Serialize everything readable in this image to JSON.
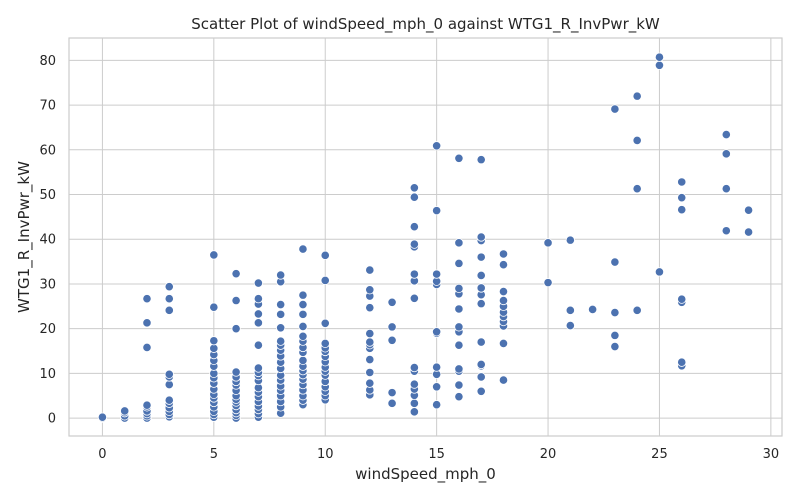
{
  "chart_data": {
    "type": "scatter",
    "title": "Scatter Plot of windSpeed_mph_0 against WTG1_R_InvPwr_kW",
    "xlabel": "windSpeed_mph_0",
    "ylabel": "WTG1_R_InvPwr_kW",
    "xlim": [
      -1.5,
      30.5
    ],
    "ylim": [
      -4,
      85
    ],
    "xticks": [
      0,
      5,
      10,
      15,
      20,
      25,
      30
    ],
    "yticks": [
      0,
      10,
      20,
      30,
      40,
      50,
      60,
      70,
      80
    ],
    "grid": true,
    "marker_color": "#4c72b0",
    "marker_edge_color": "#ffffff",
    "points": [
      [
        0,
        0
      ],
      [
        0,
        0.2
      ],
      [
        1,
        0
      ],
      [
        1,
        0.5
      ],
      [
        1,
        1.2
      ],
      [
        1,
        1.6
      ],
      [
        2,
        0
      ],
      [
        2,
        0.5
      ],
      [
        2,
        1
      ],
      [
        2,
        1.6
      ],
      [
        2,
        2.5
      ],
      [
        2,
        2.9
      ],
      [
        2,
        15.8
      ],
      [
        2,
        21.3
      ],
      [
        2,
        26.7
      ],
      [
        3,
        0.3
      ],
      [
        3,
        0.8
      ],
      [
        3,
        1.5
      ],
      [
        3,
        2.3
      ],
      [
        3,
        3.3
      ],
      [
        3,
        4
      ],
      [
        3,
        7.5
      ],
      [
        3,
        9.2
      ],
      [
        3,
        9.8
      ],
      [
        3,
        24.1
      ],
      [
        3,
        26.7
      ],
      [
        3,
        29.4
      ],
      [
        5,
        0.2
      ],
      [
        5,
        0.8
      ],
      [
        5,
        1.5
      ],
      [
        5,
        2.5
      ],
      [
        5,
        3.5
      ],
      [
        5,
        4.5
      ],
      [
        5,
        5.3
      ],
      [
        5,
        6.5
      ],
      [
        5,
        7.8
      ],
      [
        5,
        9
      ],
      [
        5,
        10
      ],
      [
        5,
        11.6
      ],
      [
        5,
        12.9
      ],
      [
        5,
        14.2
      ],
      [
        5,
        15.6
      ],
      [
        5,
        17.3
      ],
      [
        5,
        24.8
      ],
      [
        5,
        36.5
      ],
      [
        6,
        0
      ],
      [
        6,
        0.6
      ],
      [
        6,
        1.2
      ],
      [
        6,
        1.9
      ],
      [
        6,
        2.8
      ],
      [
        6,
        3.6
      ],
      [
        6,
        4.2
      ],
      [
        6,
        5
      ],
      [
        6,
        6.2
      ],
      [
        6,
        7.4
      ],
      [
        6,
        8.2
      ],
      [
        6,
        9.2
      ],
      [
        6,
        10.3
      ],
      [
        6,
        20
      ],
      [
        6,
        26.3
      ],
      [
        6,
        32.3
      ],
      [
        7,
        0.2
      ],
      [
        7,
        1
      ],
      [
        7,
        1.9
      ],
      [
        7,
        2.7
      ],
      [
        7,
        3.7
      ],
      [
        7,
        4.8
      ],
      [
        7,
        5.8
      ],
      [
        7,
        6.8
      ],
      [
        7,
        8.4
      ],
      [
        7,
        9.5
      ],
      [
        7,
        10.2
      ],
      [
        7,
        11.2
      ],
      [
        7,
        16.3
      ],
      [
        7,
        21.3
      ],
      [
        7,
        23.3
      ],
      [
        7,
        25.5
      ],
      [
        7,
        26.7
      ],
      [
        7,
        30.2
      ],
      [
        8,
        1.1
      ],
      [
        8,
        2.5
      ],
      [
        8,
        3.7
      ],
      [
        8,
        5
      ],
      [
        8,
        6.2
      ],
      [
        8,
        7.2
      ],
      [
        8,
        8.5
      ],
      [
        8,
        9.6
      ],
      [
        8,
        11.1
      ],
      [
        8,
        12.5
      ],
      [
        8,
        13.9
      ],
      [
        8,
        15.2
      ],
      [
        8,
        16.3
      ],
      [
        8,
        17.2
      ],
      [
        8,
        20.2
      ],
      [
        8,
        23.2
      ],
      [
        8,
        25.4
      ],
      [
        8,
        30.5
      ],
      [
        8,
        32
      ],
      [
        9,
        3
      ],
      [
        9,
        4
      ],
      [
        9,
        5
      ],
      [
        9,
        6.3
      ],
      [
        9,
        7.5
      ],
      [
        9,
        8.7
      ],
      [
        9,
        9.7
      ],
      [
        9,
        10.6
      ],
      [
        9,
        11.6
      ],
      [
        9,
        12.9
      ],
      [
        9,
        14.7
      ],
      [
        9,
        15.8
      ],
      [
        9,
        17.2
      ],
      [
        9,
        18.3
      ],
      [
        9,
        20.5
      ],
      [
        9,
        23.2
      ],
      [
        9,
        25.4
      ],
      [
        9,
        27.5
      ],
      [
        9,
        37.8
      ],
      [
        10,
        4.1
      ],
      [
        10,
        5
      ],
      [
        10,
        6
      ],
      [
        10,
        7
      ],
      [
        10,
        8.2
      ],
      [
        10,
        9.6
      ],
      [
        10,
        10.5
      ],
      [
        10,
        11.4
      ],
      [
        10,
        12.6
      ],
      [
        10,
        13.8
      ],
      [
        10,
        14.9
      ],
      [
        10,
        15.7
      ],
      [
        10,
        16.7
      ],
      [
        10,
        21.2
      ],
      [
        10,
        30.8
      ],
      [
        10,
        36.4
      ],
      [
        12,
        5.2
      ],
      [
        12,
        6.3
      ],
      [
        12,
        7.8
      ],
      [
        12,
        10.2
      ],
      [
        12,
        13.1
      ],
      [
        12,
        15.6
      ],
      [
        12,
        16.4
      ],
      [
        12,
        17
      ],
      [
        12,
        18.9
      ],
      [
        12,
        24.7
      ],
      [
        12,
        27.3
      ],
      [
        12,
        28.7
      ],
      [
        12,
        33.1
      ],
      [
        13,
        3.3
      ],
      [
        13,
        5.7
      ],
      [
        13,
        17.4
      ],
      [
        13,
        20.4
      ],
      [
        13,
        25.9
      ],
      [
        14,
        1.4
      ],
      [
        14,
        3.3
      ],
      [
        14,
        5.1
      ],
      [
        14,
        6.5
      ],
      [
        14,
        7.6
      ],
      [
        14,
        10.5
      ],
      [
        14,
        11.3
      ],
      [
        14,
        26.8
      ],
      [
        14,
        30.7
      ],
      [
        14,
        32.2
      ],
      [
        14,
        38.3
      ],
      [
        14,
        38.9
      ],
      [
        14,
        42.8
      ],
      [
        14,
        49.4
      ],
      [
        14,
        51.5
      ],
      [
        15,
        3
      ],
      [
        15,
        7
      ],
      [
        15,
        9.8
      ],
      [
        15,
        11.4
      ],
      [
        15,
        19
      ],
      [
        15,
        19.3
      ],
      [
        15,
        29.9
      ],
      [
        15,
        30.6
      ],
      [
        15,
        32.2
      ],
      [
        15,
        46.4
      ],
      [
        15,
        60.9
      ],
      [
        16,
        4.8
      ],
      [
        16,
        7.4
      ],
      [
        16,
        10.5
      ],
      [
        16,
        11
      ],
      [
        16,
        16.3
      ],
      [
        16,
        19.3
      ],
      [
        16,
        20.4
      ],
      [
        16,
        24.4
      ],
      [
        16,
        27.8
      ],
      [
        16,
        29
      ],
      [
        16,
        34.6
      ],
      [
        16,
        39.2
      ],
      [
        16,
        58.1
      ],
      [
        17,
        6
      ],
      [
        17,
        9.2
      ],
      [
        17,
        11.7
      ],
      [
        17,
        12
      ],
      [
        17,
        17
      ],
      [
        17,
        25.6
      ],
      [
        17,
        27.6
      ],
      [
        17,
        29.1
      ],
      [
        17,
        31.9
      ],
      [
        17,
        36
      ],
      [
        17,
        39.7
      ],
      [
        17,
        40.5
      ],
      [
        17,
        57.8
      ],
      [
        18,
        8.5
      ],
      [
        18,
        16.7
      ],
      [
        18,
        20.6
      ],
      [
        18,
        21.6
      ],
      [
        18,
        22.7
      ],
      [
        18,
        23.7
      ],
      [
        18,
        25
      ],
      [
        18,
        26.3
      ],
      [
        18,
        28.3
      ],
      [
        18,
        34.3
      ],
      [
        18,
        36.7
      ],
      [
        20,
        30.3
      ],
      [
        20,
        39.2
      ],
      [
        21,
        20.7
      ],
      [
        21,
        24.1
      ],
      [
        21,
        39.8
      ],
      [
        22,
        24.3
      ],
      [
        23,
        16
      ],
      [
        23,
        18.5
      ],
      [
        23,
        23.6
      ],
      [
        23,
        34.9
      ],
      [
        23,
        69.1
      ],
      [
        24,
        24.1
      ],
      [
        24,
        51.3
      ],
      [
        24,
        62.1
      ],
      [
        24,
        72
      ],
      [
        25,
        32.7
      ],
      [
        25,
        78.9
      ],
      [
        25,
        80.7
      ],
      [
        26,
        11.7
      ],
      [
        26,
        12.5
      ],
      [
        26,
        25.9
      ],
      [
        26,
        26.6
      ],
      [
        26,
        46.6
      ],
      [
        26,
        49.3
      ],
      [
        26,
        52.8
      ],
      [
        28,
        41.9
      ],
      [
        28,
        51.3
      ],
      [
        28,
        59.1
      ],
      [
        28,
        63.4
      ],
      [
        29,
        41.6
      ],
      [
        29,
        46.5
      ]
    ]
  }
}
